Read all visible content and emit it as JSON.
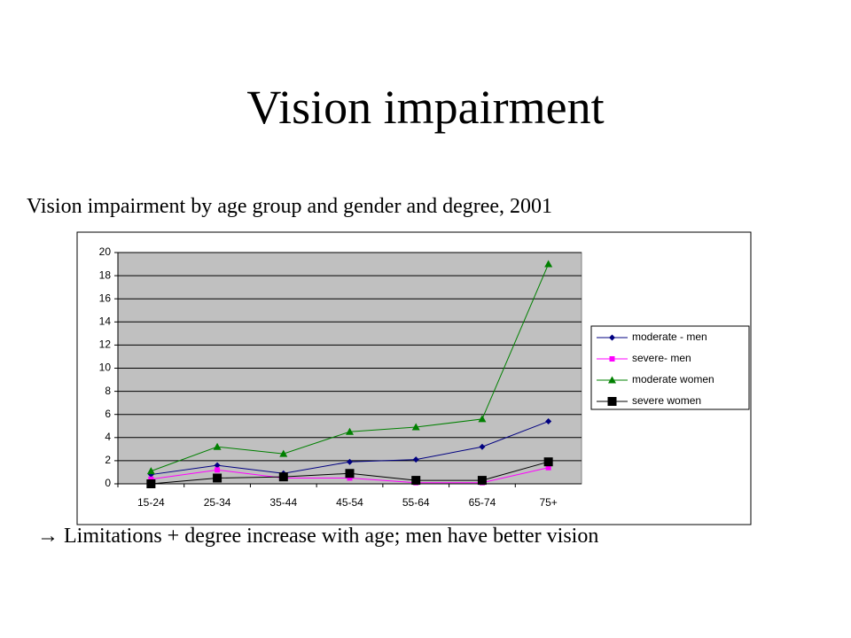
{
  "title": "Vision impairment",
  "subtitle": "Vision impairment by age group and gender and degree, 2001",
  "note": "→  Limitations + degree increase with age; men have better vision",
  "chart_data": {
    "type": "line",
    "categories": [
      "15-24",
      "25-34",
      "35-44",
      "45-54",
      "55-64",
      "65-74",
      "75+"
    ],
    "series": [
      {
        "name": "moderate - men",
        "color": "#000080",
        "marker": "diamond",
        "values": [
          0.8,
          1.6,
          0.9,
          1.9,
          2.1,
          3.2,
          5.4
        ]
      },
      {
        "name": "severe- men",
        "color": "#ff00ff",
        "marker": "square",
        "values": [
          0.4,
          1.2,
          0.5,
          0.5,
          0.1,
          0.1,
          1.4
        ]
      },
      {
        "name": "moderate women",
        "color": "#008000",
        "marker": "triangle",
        "values": [
          1.1,
          3.2,
          2.6,
          4.5,
          4.9,
          5.6,
          19
        ]
      },
      {
        "name": "severe women",
        "color": "#000000",
        "marker": "bigsquare",
        "values": [
          0.0,
          0.5,
          0.6,
          0.9,
          0.3,
          0.3,
          1.9
        ]
      }
    ],
    "ylim": [
      0,
      20
    ],
    "yticks": [
      0,
      2,
      4,
      6,
      8,
      10,
      12,
      14,
      16,
      18,
      20
    ],
    "grid": true,
    "plot_background": "#c0c0c0",
    "legend": "right"
  }
}
